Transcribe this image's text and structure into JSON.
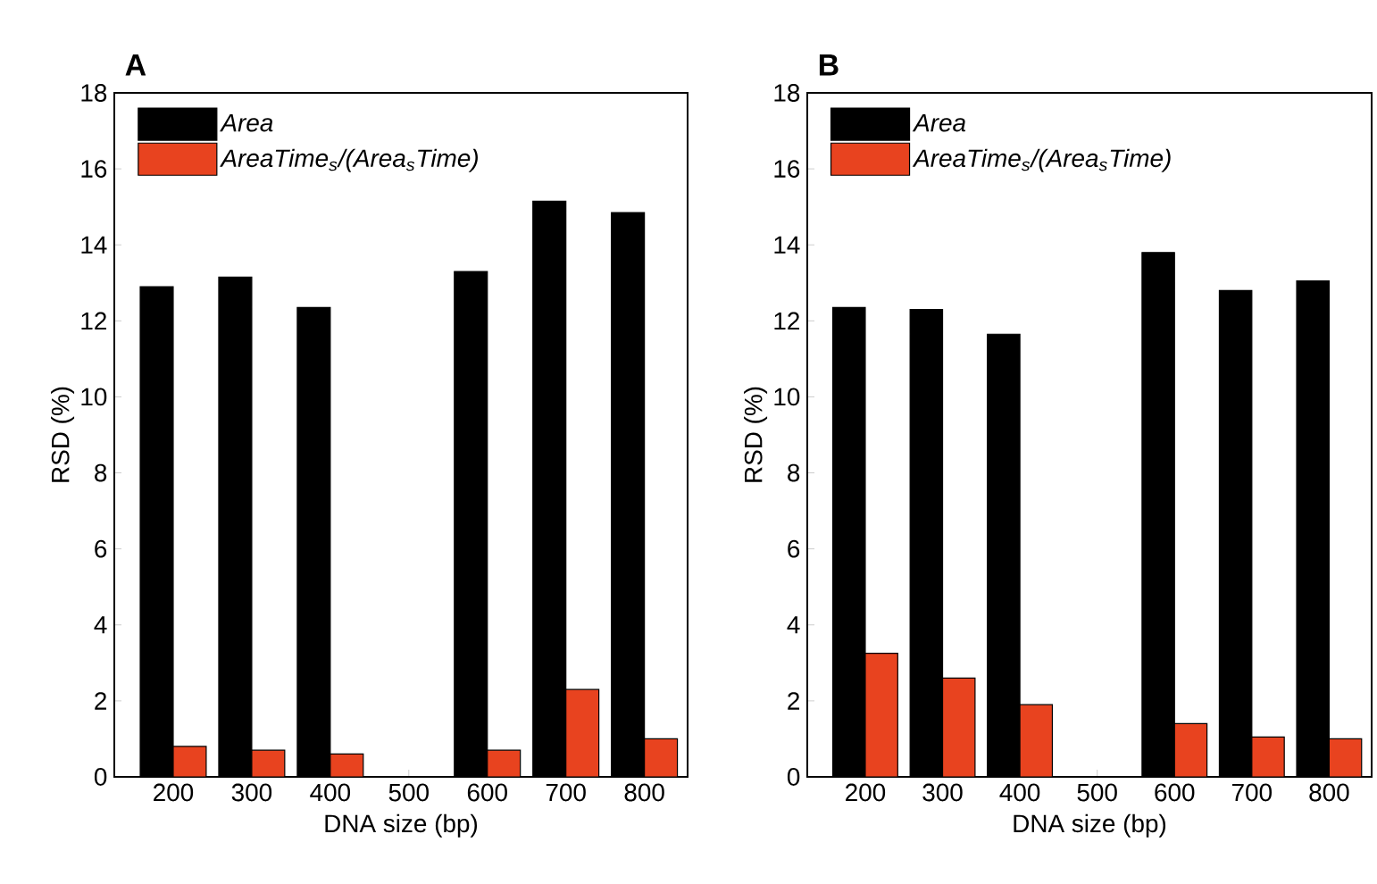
{
  "chart_data": [
    {
      "type": "bar",
      "title": "A",
      "xlabel": "DNA size (bp)",
      "ylabel": "RSD (%)",
      "categories": [
        "200",
        "300",
        "400",
        "500",
        "600",
        "700",
        "800"
      ],
      "series": [
        {
          "name": "Area",
          "color": "#000000",
          "values": [
            12.9,
            13.15,
            12.35,
            null,
            13.3,
            15.15,
            14.85
          ]
        },
        {
          "name": "AreaTime$_{s}$/(Area$_{s}$Time)",
          "color": "#e8431f",
          "values": [
            0.8,
            0.7,
            0.6,
            null,
            0.7,
            2.3,
            1.0
          ]
        }
      ],
      "ylim": [
        0,
        18
      ],
      "yticks": [
        0,
        2,
        4,
        6,
        8,
        10,
        12,
        14,
        16,
        18
      ],
      "legend": "top left"
    },
    {
      "type": "bar",
      "title": "B",
      "xlabel": "DNA size (bp)",
      "ylabel": "RSD (%)",
      "categories": [
        "200",
        "300",
        "400",
        "500",
        "600",
        "700",
        "800"
      ],
      "series": [
        {
          "name": "Area",
          "color": "#000000",
          "values": [
            12.35,
            12.3,
            11.65,
            null,
            13.8,
            12.8,
            13.05
          ]
        },
        {
          "name": "AreaTime$_{s}$/(Area$_{s}$Time)",
          "color": "#e8431f",
          "values": [
            3.25,
            2.6,
            1.9,
            null,
            1.4,
            1.05,
            1.0
          ]
        }
      ],
      "ylim": [
        0,
        18
      ],
      "yticks": [
        0,
        2,
        4,
        6,
        8,
        10,
        12,
        14,
        16,
        18
      ],
      "legend": "top left"
    }
  ]
}
